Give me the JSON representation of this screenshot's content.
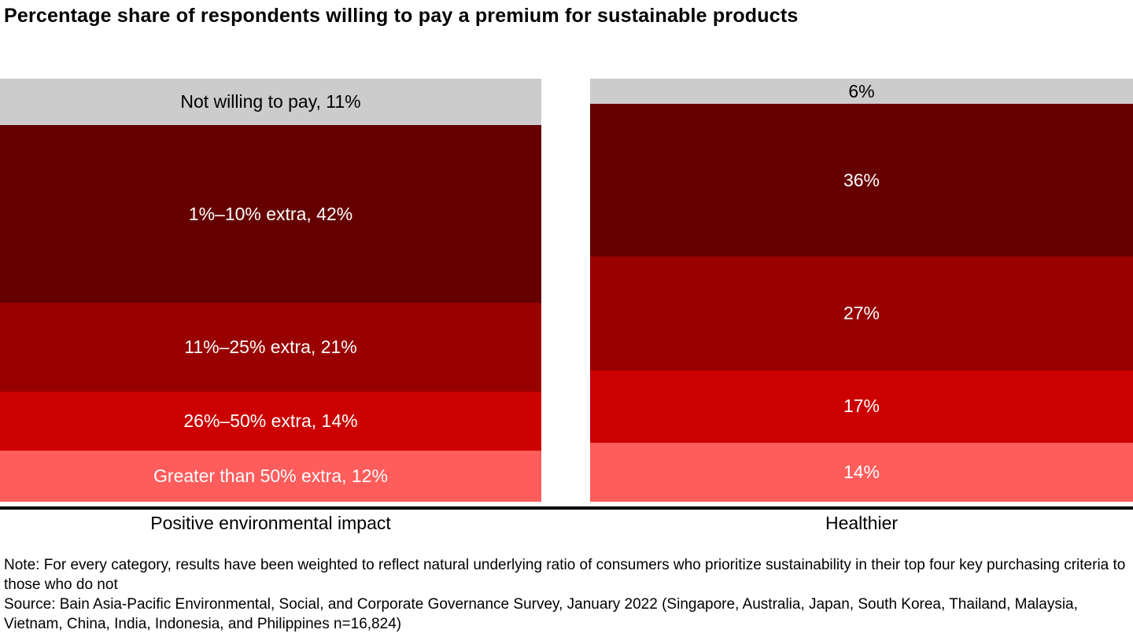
{
  "title": "Percentage share of respondents willing to pay a premium for sustainable products",
  "note": "Note: For every category, results have been weighted to reflect natural underlying ratio of consumers who prioritize sustainability in their top four key purchasing criteria to those who do not",
  "source": "Source: Bain Asia-Pacific Environmental, Social, and Corporate Governance Survey, January 2022 (Singapore, Australia, Japan, South Korea, Thailand, Malaysia, Vietnam, China, India, Indonesia, and Philippines n=16,824)",
  "chart_data": {
    "type": "bar",
    "stacked": true,
    "orientation": "vertical",
    "value_unit": "%",
    "ylim": [
      0,
      100
    ],
    "grid": false,
    "legend": "none (labels inline in segments)",
    "categories": [
      "Positive environmental impact",
      "Healthier"
    ],
    "series": [
      {
        "name": "Not willing to pay",
        "color": "#cccccc",
        "text_color": "#000000",
        "values": [
          11,
          6
        ]
      },
      {
        "name": "1%–10% extra",
        "color": "#660000",
        "text_color": "#ffffff",
        "values": [
          42,
          36
        ]
      },
      {
        "name": "11%–25% extra",
        "color": "#990000",
        "text_color": "#ffffff",
        "values": [
          21,
          27
        ]
      },
      {
        "name": "26%–50% extra",
        "color": "#cc0000",
        "text_color": "#ffffff",
        "values": [
          14,
          17
        ]
      },
      {
        "name": "Greater than 50% extra",
        "color": "#ff5c5c",
        "text_color": "#ffffff",
        "values": [
          12,
          14
        ]
      }
    ],
    "bar_labels": {
      "left": [
        "Not willing to pay, 11%",
        "1%–10% extra, 42%",
        "11%–25% extra, 21%",
        "26%–50% extra, 14%",
        "Greater than 50% extra, 12%"
      ],
      "right": [
        "6%",
        "36%",
        "27%",
        "17%",
        "14%"
      ]
    }
  }
}
